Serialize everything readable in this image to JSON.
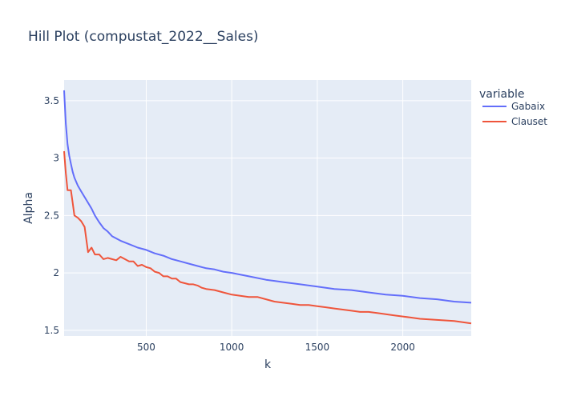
{
  "chart_data": {
    "type": "line",
    "title": "Hill Plot (compustat_2022__Sales)",
    "xlabel": "k",
    "ylabel": "Alpha",
    "xlim": [
      20,
      2400
    ],
    "ylim": [
      1.45,
      3.68
    ],
    "xticks": [
      500,
      1000,
      1500,
      2000
    ],
    "xtick_labels": [
      "500",
      "1000",
      "1500",
      "2000"
    ],
    "yticks": [
      1.5,
      2,
      2.5,
      3,
      3.5
    ],
    "ytick_labels": [
      "1.5",
      "2",
      "2.5",
      "3",
      "3.5"
    ],
    "grid": true,
    "background": "#e5ecf6",
    "legend": {
      "title": "variable",
      "position": "right"
    },
    "series": [
      {
        "name": "Gabaix",
        "color": "#636efa",
        "x": [
          20,
          30,
          40,
          50,
          60,
          70,
          80,
          100,
          120,
          140,
          160,
          180,
          200,
          225,
          250,
          275,
          300,
          350,
          400,
          450,
          500,
          550,
          600,
          650,
          700,
          750,
          800,
          850,
          900,
          950,
          1000,
          1100,
          1200,
          1250,
          1300,
          1400,
          1500,
          1600,
          1700,
          1800,
          1900,
          2000,
          2100,
          2200,
          2300,
          2400
        ],
        "values": [
          3.59,
          3.3,
          3.12,
          3.02,
          2.95,
          2.88,
          2.83,
          2.76,
          2.71,
          2.66,
          2.61,
          2.56,
          2.5,
          2.44,
          2.39,
          2.36,
          2.32,
          2.28,
          2.25,
          2.22,
          2.2,
          2.17,
          2.15,
          2.12,
          2.1,
          2.08,
          2.06,
          2.04,
          2.03,
          2.01,
          2.0,
          1.97,
          1.94,
          1.93,
          1.92,
          1.9,
          1.88,
          1.86,
          1.85,
          1.83,
          1.81,
          1.8,
          1.78,
          1.77,
          1.75,
          1.74
        ]
      },
      {
        "name": "Clauset",
        "color": "#ef553b",
        "x": [
          20,
          30,
          40,
          50,
          60,
          70,
          80,
          100,
          120,
          140,
          160,
          180,
          200,
          225,
          250,
          275,
          300,
          325,
          350,
          375,
          400,
          425,
          450,
          475,
          500,
          525,
          550,
          575,
          600,
          625,
          650,
          675,
          700,
          725,
          750,
          775,
          800,
          825,
          850,
          900,
          950,
          1000,
          1050,
          1100,
          1150,
          1200,
          1250,
          1300,
          1350,
          1400,
          1450,
          1500,
          1550,
          1600,
          1650,
          1700,
          1750,
          1800,
          1850,
          1900,
          1950,
          2000,
          2050,
          2100,
          2200,
          2300,
          2400
        ],
        "values": [
          3.06,
          2.87,
          2.72,
          2.72,
          2.72,
          2.61,
          2.5,
          2.48,
          2.45,
          2.4,
          2.18,
          2.22,
          2.16,
          2.16,
          2.12,
          2.13,
          2.12,
          2.11,
          2.14,
          2.12,
          2.1,
          2.1,
          2.06,
          2.07,
          2.05,
          2.04,
          2.01,
          2.0,
          1.97,
          1.97,
          1.95,
          1.95,
          1.92,
          1.91,
          1.9,
          1.9,
          1.89,
          1.87,
          1.86,
          1.85,
          1.83,
          1.81,
          1.8,
          1.79,
          1.79,
          1.77,
          1.75,
          1.74,
          1.73,
          1.72,
          1.72,
          1.71,
          1.7,
          1.69,
          1.68,
          1.67,
          1.66,
          1.66,
          1.65,
          1.64,
          1.63,
          1.62,
          1.61,
          1.6,
          1.59,
          1.58,
          1.56
        ]
      }
    ]
  }
}
